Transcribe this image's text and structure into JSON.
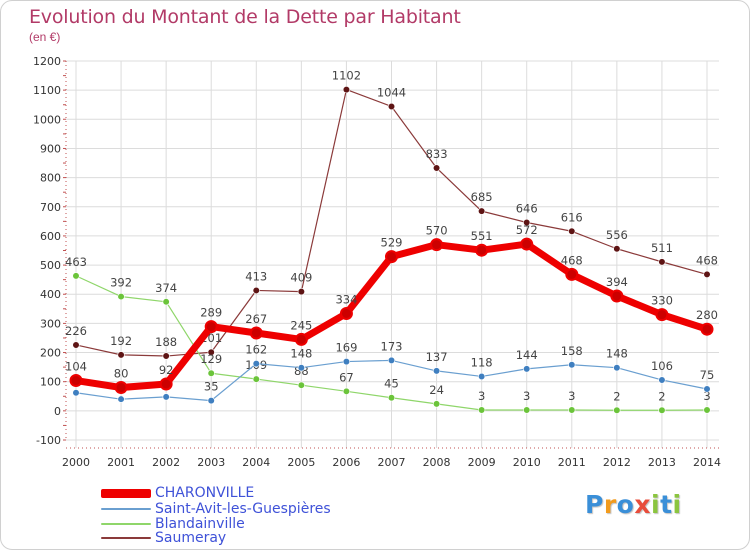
{
  "title": "Evolution du Montant de la Dette par Habitant",
  "subtitle": "(en €)",
  "brand": {
    "text": "Proxiti",
    "letters": [
      "P",
      "r",
      "o",
      "x",
      "i",
      "t",
      "i"
    ],
    "colors": [
      "#3a8fd8",
      "#f29b1d",
      "#3a8fd8",
      "#e84d3b",
      "#8bc53f",
      "#3a8fd8",
      "#8bc53f"
    ]
  },
  "chart_data": {
    "type": "line",
    "title": "Evolution du Montant de la Dette par Habitant",
    "ylabel": "(en €)",
    "xlabel": "",
    "ylim": [
      -100,
      1200
    ],
    "y_ticks": [
      "-100",
      "0",
      "100",
      "200",
      "300",
      "400",
      "500",
      "600",
      "700",
      "800",
      "900",
      "1000",
      "1100",
      "1200"
    ],
    "categories": [
      "2000",
      "2001",
      "2002",
      "2003",
      "2004",
      "2005",
      "2006",
      "2007",
      "2008",
      "2009",
      "2010",
      "2011",
      "2012",
      "2013",
      "2014"
    ],
    "legend_position": "bottom-left",
    "series": [
      {
        "name": "Saumeray",
        "color": "#8b3a3a",
        "marker": "#5e1414",
        "values": [
          226,
          192,
          188,
          201,
          413,
          409,
          1102,
          1044,
          833,
          685,
          646,
          616,
          556,
          511,
          468
        ],
        "labels": [
          "226",
          "192",
          "188",
          "201",
          "413",
          "409",
          "1102",
          "1044",
          "833",
          "685",
          "646",
          "616",
          "556",
          "511",
          "468"
        ]
      },
      {
        "name": "Blandainville",
        "color": "#8fd66a",
        "marker": "#6bc43a",
        "values": [
          463,
          392,
          374,
          129,
          109,
          88,
          67,
          45,
          24,
          3,
          3,
          3,
          2,
          2,
          3
        ],
        "labels": [
          "463",
          "392",
          "374",
          "129",
          "109",
          "88",
          "67",
          "45",
          "24",
          "3",
          "3",
          "3",
          "2",
          "2",
          "3"
        ]
      },
      {
        "name": "Saint-Avit-les-Guespières",
        "color": "#6a9fd0",
        "marker": "#3f7fc0",
        "values": [
          62,
          40,
          48,
          35,
          162,
          148,
          169,
          173,
          137,
          118,
          144,
          158,
          148,
          106,
          75
        ],
        "labels": [
          "",
          "",
          "",
          "35",
          "162",
          "148",
          "169",
          "173",
          "137",
          "118",
          "144",
          "158",
          "148",
          "106",
          "75"
        ]
      },
      {
        "name": "CHARONVILLE",
        "color": "#ee0000",
        "marker": "#cc0000",
        "values": [
          104,
          80,
          92,
          289,
          267,
          245,
          334,
          529,
          570,
          551,
          572,
          468,
          394,
          330,
          280
        ],
        "labels": [
          "104",
          "80",
          "92",
          "289",
          "267",
          "245",
          "334",
          "529",
          "570",
          "551",
          "572",
          "468",
          "394",
          "330",
          "280"
        ]
      }
    ]
  },
  "legend": [
    {
      "name": "CHARONVILLE",
      "color": "#ee0000"
    },
    {
      "name": "Saint-Avit-les-Guespières",
      "color": "#6a9fd0"
    },
    {
      "name": "Blandainville",
      "color": "#8fd66a"
    },
    {
      "name": "Saumeray",
      "color": "#8b3a3a"
    }
  ]
}
